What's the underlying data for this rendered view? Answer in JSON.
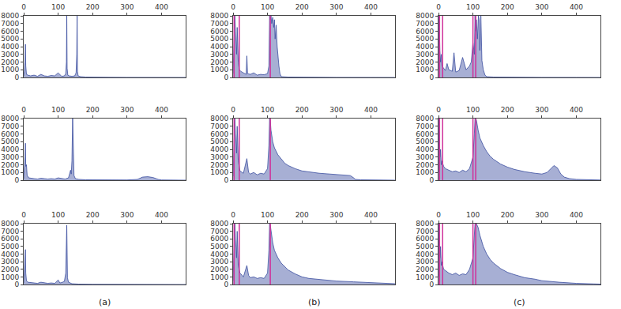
{
  "chart_data": [
    {
      "type": "area",
      "color": "#3b4ea0",
      "xlim": [
        0,
        470
      ],
      "xticks": [
        0,
        100,
        200,
        300,
        400
      ],
      "ylim": [
        0,
        8000
      ],
      "yticks": [
        0,
        1000,
        2000,
        3000,
        4000,
        5000,
        6000,
        7000,
        8000
      ],
      "x": [
        0,
        2,
        4,
        5,
        6,
        8,
        12,
        16,
        20,
        30,
        40,
        50,
        60,
        70,
        80,
        90,
        100,
        110,
        118,
        122,
        124,
        125,
        126,
        128,
        132,
        140,
        148,
        152,
        154,
        155,
        156,
        158,
        165,
        180,
        200,
        250,
        300,
        350,
        400,
        450,
        470
      ],
      "values": [
        200,
        800,
        2000,
        4300,
        1500,
        400,
        300,
        250,
        200,
        300,
        150,
        400,
        200,
        150,
        250,
        200,
        600,
        150,
        200,
        500,
        2000,
        8000,
        1200,
        300,
        200,
        150,
        200,
        600,
        3000,
        8000,
        800,
        200,
        100,
        50,
        30,
        20,
        10,
        10,
        5,
        5,
        0
      ]
    },
    {
      "type": "area",
      "color": "#3b4ea0",
      "xlim": [
        0,
        470
      ],
      "xticks": [
        0,
        100,
        200,
        300,
        400
      ],
      "ylim": [
        0,
        8000
      ],
      "yticks": [
        0,
        1000,
        2000,
        3000,
        4000,
        5000,
        6000,
        7000,
        8000
      ],
      "x": [
        0,
        3,
        5,
        7,
        10,
        12,
        15,
        18,
        22,
        30,
        38,
        40,
        42,
        50,
        60,
        70,
        80,
        90,
        100,
        104,
        106,
        108,
        110,
        112,
        115,
        118,
        120,
        122,
        125,
        128,
        130,
        133,
        136,
        140,
        160,
        200,
        300,
        400,
        470
      ],
      "values": [
        500,
        4000,
        8000,
        6000,
        3000,
        6500,
        2000,
        1000,
        800,
        600,
        400,
        2800,
        500,
        400,
        600,
        300,
        400,
        350,
        500,
        1500,
        8000,
        7500,
        8000,
        7000,
        7800,
        6500,
        7500,
        5000,
        6800,
        4000,
        2500,
        1500,
        500,
        100,
        50,
        30,
        10,
        5,
        0
      ],
      "vlines": {
        "color": "#d0309a",
        "x": [
          3,
          18,
          108
        ]
      }
    },
    {
      "type": "area",
      "color": "#3b4ea0",
      "xlim": [
        0,
        470
      ],
      "xticks": [
        0,
        100,
        200,
        300,
        400
      ],
      "ylim": [
        0,
        8000
      ],
      "yticks": [
        0,
        1000,
        2000,
        3000,
        4000,
        5000,
        6000,
        7000,
        8000
      ],
      "x": [
        0,
        2,
        4,
        6,
        8,
        10,
        15,
        20,
        25,
        30,
        40,
        45,
        50,
        60,
        70,
        80,
        90,
        95,
        100,
        104,
        106,
        108,
        110,
        113,
        116,
        118,
        120,
        123,
        126,
        130,
        135,
        140,
        160,
        200,
        300,
        400,
        470
      ],
      "values": [
        1000,
        8000,
        3500,
        2000,
        3000,
        1500,
        1200,
        900,
        1800,
        1000,
        800,
        3200,
        700,
        900,
        2600,
        1000,
        1500,
        2000,
        4500,
        3000,
        8000,
        6000,
        7500,
        5000,
        8000,
        7500,
        3500,
        8000,
        2200,
        1000,
        300,
        100,
        50,
        20,
        10,
        5,
        0
      ],
      "vlines": {
        "color": "#d0309a",
        "x": [
          3,
          12,
          100,
          108
        ]
      }
    },
    {
      "type": "area",
      "color": "#3b4ea0",
      "xlim": [
        0,
        470
      ],
      "xticks": [
        0,
        100,
        200,
        300,
        400
      ],
      "ylim": [
        0,
        8000
      ],
      "yticks": [
        0,
        1000,
        2000,
        3000,
        4000,
        5000,
        6000,
        7000,
        8000
      ],
      "x": [
        0,
        2,
        4,
        5,
        6,
        8,
        10,
        15,
        20,
        30,
        40,
        50,
        60,
        70,
        80,
        90,
        100,
        110,
        120,
        130,
        136,
        138,
        140,
        142,
        144,
        146,
        150,
        160,
        180,
        200,
        250,
        300,
        330,
        345,
        360,
        375,
        390,
        400,
        450,
        470
      ],
      "values": [
        200,
        1500,
        3000,
        4800,
        1800,
        2000,
        600,
        300,
        250,
        200,
        150,
        250,
        200,
        150,
        200,
        150,
        300,
        200,
        150,
        300,
        1300,
        800,
        2500,
        8000,
        1500,
        600,
        200,
        100,
        50,
        40,
        30,
        30,
        100,
        400,
        450,
        350,
        100,
        30,
        10,
        0
      ]
    },
    {
      "type": "area",
      "color": "#3b4ea0",
      "xlim": [
        0,
        470
      ],
      "xticks": [
        0,
        100,
        200,
        300,
        400
      ],
      "ylim": [
        0,
        8000
      ],
      "yticks": [
        0,
        1000,
        2000,
        3000,
        4000,
        5000,
        6000,
        7000,
        8000
      ],
      "x": [
        0,
        3,
        5,
        7,
        10,
        12,
        15,
        20,
        30,
        40,
        45,
        50,
        60,
        70,
        80,
        90,
        100,
        104,
        106,
        108,
        110,
        115,
        120,
        130,
        140,
        150,
        160,
        180,
        200,
        220,
        250,
        280,
        300,
        320,
        340,
        350,
        355,
        370,
        400,
        450,
        470
      ],
      "values": [
        500,
        5000,
        8000,
        6000,
        3500,
        7000,
        2500,
        1200,
        900,
        2800,
        1000,
        800,
        1000,
        700,
        900,
        800,
        1500,
        4500,
        8000,
        7800,
        6500,
        5000,
        4200,
        3300,
        2700,
        2200,
        1900,
        1500,
        1200,
        1050,
        900,
        800,
        750,
        700,
        600,
        300,
        100,
        50,
        30,
        10,
        0
      ],
      "vlines": {
        "color": "#d0309a",
        "x": [
          3,
          18,
          108
        ]
      }
    },
    {
      "type": "area",
      "color": "#3b4ea0",
      "xlim": [
        0,
        470
      ],
      "xticks": [
        0,
        100,
        200,
        300,
        400
      ],
      "ylim": [
        0,
        8000
      ],
      "yticks": [
        0,
        1000,
        2000,
        3000,
        4000,
        5000,
        6000,
        7000,
        8000
      ],
      "x": [
        0,
        2,
        4,
        6,
        8,
        10,
        15,
        20,
        30,
        40,
        50,
        60,
        70,
        80,
        90,
        100,
        104,
        106,
        108,
        110,
        115,
        120,
        130,
        140,
        150,
        160,
        180,
        200,
        220,
        250,
        280,
        300,
        315,
        325,
        335,
        345,
        355,
        365,
        380,
        400,
        450,
        470
      ],
      "values": [
        1000,
        8000,
        3000,
        4000,
        2000,
        2500,
        1800,
        1500,
        1300,
        1100,
        1200,
        1000,
        1300,
        1100,
        1500,
        3000,
        6000,
        8000,
        8000,
        7800,
        6500,
        5500,
        4500,
        3700,
        3100,
        2700,
        2100,
        1700,
        1400,
        1100,
        900,
        800,
        1000,
        1500,
        1900,
        1600,
        800,
        400,
        200,
        100,
        50,
        20
      ],
      "vlines": {
        "color": "#d0309a",
        "x": [
          3,
          12,
          100,
          108
        ]
      }
    },
    {
      "type": "area",
      "color": "#3b4ea0",
      "xlim": [
        0,
        470
      ],
      "xticks": [
        0,
        100,
        200,
        300,
        400
      ],
      "ylim": [
        0,
        8000
      ],
      "yticks": [
        0,
        1000,
        2000,
        3000,
        4000,
        5000,
        6000,
        7000,
        8000
      ],
      "x": [
        0,
        2,
        4,
        5,
        6,
        8,
        12,
        20,
        30,
        40,
        50,
        60,
        70,
        80,
        90,
        100,
        105,
        110,
        118,
        122,
        125,
        127,
        130,
        140,
        160,
        200,
        250,
        300,
        350,
        400,
        450,
        470
      ],
      "values": [
        200,
        1800,
        3000,
        4600,
        1500,
        500,
        300,
        250,
        200,
        150,
        300,
        200,
        150,
        200,
        150,
        600,
        200,
        250,
        400,
        1500,
        7800,
        900,
        300,
        100,
        50,
        30,
        20,
        10,
        10,
        5,
        5,
        0
      ],
      "annotation": "(a)"
    },
    {
      "type": "area",
      "color": "#3b4ea0",
      "xlim": [
        0,
        470
      ],
      "xticks": [
        0,
        100,
        200,
        300,
        400
      ],
      "ylim": [
        0,
        8000
      ],
      "yticks": [
        0,
        1000,
        2000,
        3000,
        4000,
        5000,
        6000,
        7000,
        8000
      ],
      "x": [
        0,
        3,
        5,
        7,
        10,
        12,
        15,
        20,
        30,
        40,
        45,
        50,
        60,
        70,
        80,
        90,
        100,
        104,
        106,
        108,
        110,
        115,
        120,
        130,
        140,
        150,
        160,
        180,
        200,
        220,
        250,
        280,
        300,
        350,
        400,
        450,
        470
      ],
      "values": [
        500,
        5000,
        8000,
        6000,
        3500,
        7000,
        2500,
        1500,
        1000,
        2500,
        1200,
        900,
        1000,
        800,
        900,
        800,
        1500,
        4500,
        8000,
        7800,
        7000,
        5500,
        4500,
        3500,
        2800,
        2300,
        1900,
        1400,
        1000,
        800,
        650,
        550,
        450,
        350,
        250,
        150,
        100
      ],
      "vlines": {
        "color": "#d0309a",
        "x": [
          3,
          18,
          108
        ]
      },
      "annotation": "(b)"
    },
    {
      "type": "area",
      "color": "#3b4ea0",
      "xlim": [
        0,
        470
      ],
      "xticks": [
        0,
        100,
        200,
        300,
        400
      ],
      "ylim": [
        0,
        8000
      ],
      "yticks": [
        0,
        1000,
        2000,
        3000,
        4000,
        5000,
        6000,
        7000,
        8000
      ],
      "x": [
        0,
        2,
        4,
        6,
        8,
        10,
        15,
        20,
        30,
        40,
        50,
        60,
        70,
        80,
        90,
        100,
        104,
        106,
        108,
        110,
        115,
        120,
        130,
        140,
        150,
        160,
        180,
        200,
        220,
        250,
        280,
        300,
        350,
        400,
        450,
        470
      ],
      "values": [
        1000,
        8000,
        3500,
        5000,
        2500,
        3000,
        2000,
        1800,
        1500,
        1300,
        1500,
        1200,
        1400,
        1300,
        2000,
        3500,
        6500,
        8000,
        8000,
        8000,
        7500,
        6500,
        5000,
        4000,
        3300,
        2800,
        2100,
        1600,
        1300,
        900,
        700,
        500,
        300,
        150,
        80,
        50
      ],
      "vlines": {
        "color": "#d0309a",
        "x": [
          3,
          12,
          100,
          108
        ]
      },
      "annotation": "(c)"
    }
  ]
}
